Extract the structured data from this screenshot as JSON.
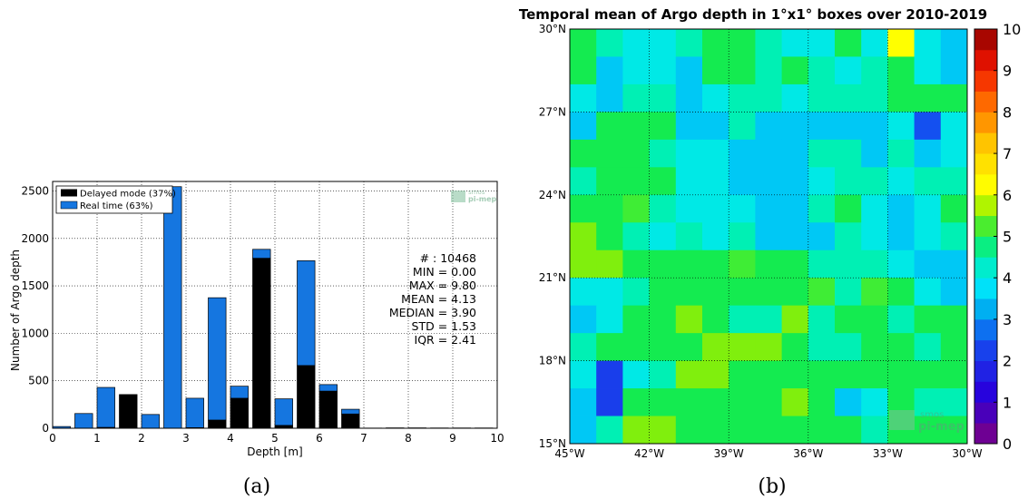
{
  "captions": {
    "a": "(a)",
    "b": "(b)"
  },
  "chart_data": [
    {
      "type": "bar",
      "stacked": true,
      "xlabel": "Depth [m]",
      "ylabel": "Number of Argo depth",
      "xlim": [
        0,
        10
      ],
      "ylim": [
        0,
        2600
      ],
      "xticks": [
        0,
        1,
        2,
        3,
        4,
        5,
        6,
        7,
        8,
        9,
        10
      ],
      "yticks": [
        0,
        500,
        1000,
        1500,
        2000,
        2500
      ],
      "bin_width": 0.4,
      "x": [
        0.2,
        0.7,
        1.2,
        1.7,
        2.2,
        2.7,
        3.2,
        3.7,
        4.2,
        4.7,
        5.2,
        5.7,
        6.2,
        6.7,
        7.2,
        7.7,
        8.2,
        8.7,
        9.2,
        9.7
      ],
      "series": [
        {
          "name": "Delayed mode (37%)",
          "color": "#000000",
          "values": [
            0,
            0,
            8,
            355,
            0,
            0,
            6,
            85,
            315,
            1790,
            30,
            660,
            390,
            150,
            0,
            0,
            0,
            0,
            0,
            0
          ]
        },
        {
          "name": "Real time (63%)",
          "color": "#1576e0",
          "values": [
            18,
            155,
            422,
            0,
            145,
            2545,
            310,
            1290,
            128,
            95,
            280,
            1105,
            70,
            50,
            2,
            4,
            4,
            3,
            3,
            3
          ]
        }
      ],
      "legend": "top-left",
      "stats": [
        "# : 10468",
        "MIN = 0.00",
        "MAX =  9.80",
        "MEAN = 4.13",
        "MEDIAN = 3.90",
        "STD = 1.53",
        "IQR = 2.41"
      ],
      "watermark": "smos pi-mep",
      "grid": true
    },
    {
      "type": "heatmap",
      "title": "Temporal mean of Argo depth in 1°x1° boxes over 2010-2019",
      "xlim": [
        -45,
        -30
      ],
      "ylim": [
        15,
        30
      ],
      "xticks": [
        "45°W",
        "42°W",
        "39°W",
        "36°W",
        "33°W",
        "30°W"
      ],
      "yticks": [
        "15°N",
        "18°N",
        "21°N",
        "24°N",
        "27°N",
        "30°N"
      ],
      "colorbar": {
        "min": 0,
        "max": 10,
        "ticks": [
          "0",
          "1",
          "2",
          "3",
          "4",
          "5",
          "6",
          "7",
          "8",
          "9",
          "10"
        ]
      },
      "grid": true,
      "watermark": "smos pi-mep",
      "rows_north_to_south": [
        [
          5,
          4.5,
          4,
          4,
          4.5,
          5,
          5,
          4.5,
          4,
          4,
          5,
          4,
          6.2,
          4,
          3.5
        ],
        [
          5,
          3.5,
          4,
          4,
          3.5,
          5,
          5,
          4.5,
          5,
          4.5,
          4,
          4.5,
          5,
          4,
          3.5
        ],
        [
          4,
          3.5,
          4.5,
          4.5,
          3.5,
          4,
          4.5,
          4.5,
          4,
          4.5,
          4.5,
          4.5,
          5,
          5,
          5
        ],
        [
          3.5,
          5,
          5,
          5,
          3.5,
          3.5,
          4.5,
          3.5,
          3.5,
          3.5,
          3.5,
          3.5,
          4,
          2.5,
          4
        ],
        [
          5,
          5,
          5,
          4.5,
          4,
          4,
          3.5,
          3.5,
          3.5,
          4.5,
          4.5,
          3.5,
          4.5,
          3.5,
          4
        ],
        [
          4.5,
          5,
          5,
          5,
          4,
          4,
          3.5,
          3.5,
          3.5,
          4,
          4.5,
          4.5,
          4,
          4.5,
          4.5
        ],
        [
          5,
          5,
          5.2,
          4.5,
          4,
          4,
          4,
          3.5,
          3.5,
          4.5,
          5,
          4,
          3.5,
          4,
          5
        ],
        [
          5.5,
          5,
          4.5,
          4,
          4.5,
          4,
          4.5,
          3.5,
          3.5,
          3.5,
          4.5,
          4,
          3.5,
          4,
          4.5
        ],
        [
          5.5,
          5.5,
          5,
          5,
          5,
          5,
          5.2,
          5,
          5,
          4.5,
          4.5,
          4.5,
          4,
          3.5,
          3.5
        ],
        [
          4,
          4,
          4.5,
          5,
          5,
          5,
          5,
          5,
          5,
          5.2,
          4.5,
          5.2,
          5,
          4,
          3.5
        ],
        [
          3.5,
          4,
          5,
          5,
          5.5,
          5,
          4.5,
          4.5,
          5.5,
          4.5,
          5,
          5,
          4.5,
          5,
          5
        ],
        [
          4.5,
          5,
          5,
          5,
          5,
          5.5,
          5.5,
          5.5,
          5,
          4.5,
          4.5,
          5,
          5,
          4.5,
          5
        ],
        [
          4,
          2.2,
          4,
          4.5,
          5.5,
          5.5,
          5,
          5,
          5,
          5,
          5,
          5,
          5,
          5,
          5
        ],
        [
          3.5,
          2.2,
          5,
          5,
          5,
          5,
          5,
          5,
          5.5,
          5,
          3.5,
          4,
          5,
          4.5,
          4.5
        ],
        [
          3.5,
          4.5,
          5.5,
          5.5,
          5,
          5,
          5,
          5,
          5,
          5,
          5,
          4.5,
          5,
          5,
          5
        ]
      ]
    }
  ]
}
